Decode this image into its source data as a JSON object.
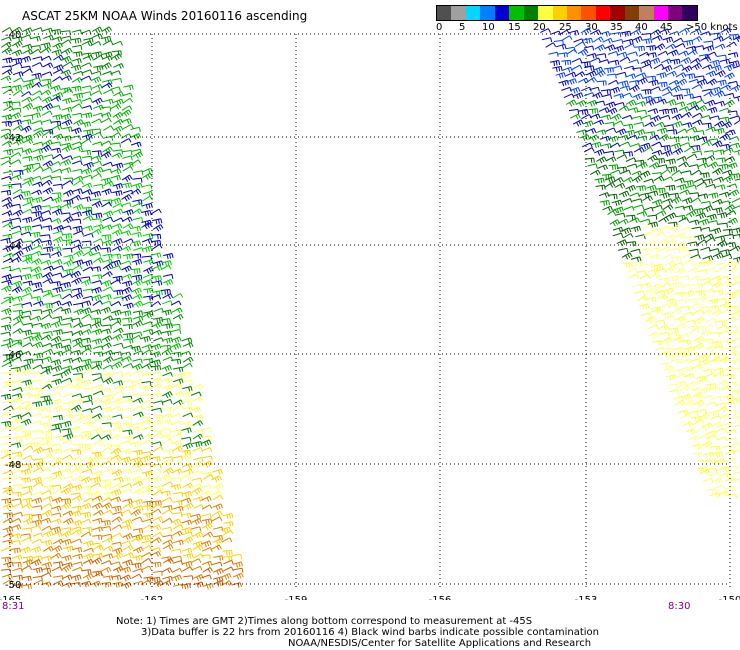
{
  "title": "ASCAT 25KM NOAA Winds 20160116 ascending",
  "legend": {
    "colors": [
      "#505050",
      "#a0a0a0",
      "#00d8ff",
      "#0080ff",
      "#0000d0",
      "#00c000",
      "#008000",
      "#ffff40",
      "#ffd000",
      "#ff9000",
      "#ff5000",
      "#ff0000",
      "#a00000",
      "#804000",
      "#c08060",
      "#ff00ff",
      "#800080",
      "#300060"
    ],
    "labels": [
      "0",
      "5",
      "10",
      "15",
      "20",
      "25",
      "30",
      "35",
      "40",
      "45",
      ">50 knots"
    ]
  },
  "axes": {
    "lat_labels": [
      "-40",
      "-42",
      "-44",
      "-46",
      "-48",
      "-50"
    ],
    "lon_labels": [
      "-165",
      "-162",
      "-159",
      "-156",
      "-153",
      "-150"
    ]
  },
  "swaths": [
    {
      "name": "western-swath",
      "colors": [
        "#008000",
        "#0000c0",
        "#00b000",
        "#00d000",
        "#ffff60",
        "#ffd000",
        "#e08000",
        "#d06000"
      ]
    },
    {
      "name": "eastern-swath",
      "colors": [
        "#0000c0",
        "#0040ff",
        "#00a000",
        "#006000",
        "#ffff80",
        "#ffff40"
      ]
    }
  ],
  "time_left": "8:31",
  "time_right": "8:30",
  "notes": [
    "Note: 1) Times are GMT 2)Times along bottom correspond to measurement at -45S",
    "3)Data buffer is 22 hrs from 20160116 4) Black wind barbs indicate possible contamination",
    "NOAA/NESDIS/Center for Satellite Applications and Research"
  ]
}
